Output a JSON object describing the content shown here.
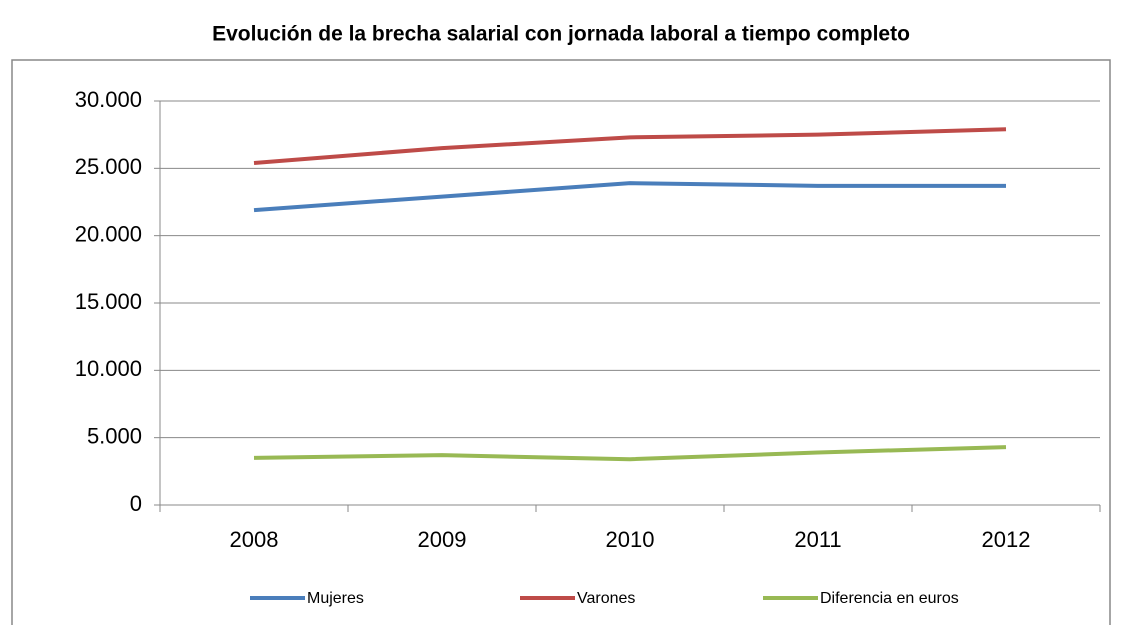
{
  "chart_data": {
    "type": "line",
    "title": "Evolución de la brecha salarial con jornada laboral a tiempo completo",
    "categories": [
      "2008",
      "2009",
      "2010",
      "2011",
      "2012"
    ],
    "series": [
      {
        "name": "Mujeres",
        "color": "#4a7ebb",
        "values": [
          21900,
          22900,
          23900,
          23700,
          23700
        ]
      },
      {
        "name": "Varones",
        "color": "#be4b48",
        "values": [
          25400,
          26500,
          27300,
          27500,
          27900
        ]
      },
      {
        "name": "Diferencia en euros",
        "color": "#98b954",
        "values": [
          3500,
          3700,
          3400,
          3900,
          4300
        ]
      }
    ],
    "ylim": [
      0,
      30000
    ],
    "yticks": [
      0,
      {
        "value": 5000,
        "label": "5.000"
      },
      {
        "value": 10000,
        "label": "10.000"
      },
      {
        "value": 15000,
        "label": "15.000"
      },
      {
        "value": 20000,
        "label": "20.000"
      },
      {
        "value": 25000,
        "label": "25.000"
      },
      {
        "value": 30000,
        "label": "30.000"
      }
    ],
    "grid": true,
    "legend": "bottom"
  }
}
